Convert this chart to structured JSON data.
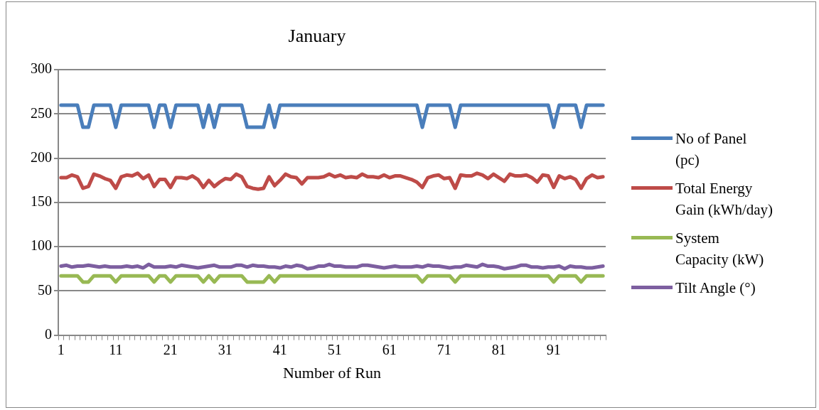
{
  "chart_data": {
    "type": "line",
    "title": "January",
    "xlabel": "Number of Run",
    "categories": [
      "1",
      null,
      null,
      null,
      null,
      null,
      null,
      null,
      null,
      null,
      "11",
      null,
      null,
      null,
      null,
      null,
      null,
      null,
      null,
      null,
      "21",
      null,
      null,
      null,
      null,
      null,
      null,
      null,
      null,
      null,
      "31",
      null,
      null,
      null,
      null,
      null,
      null,
      null,
      null,
      null,
      "41",
      null,
      null,
      null,
      null,
      null,
      null,
      null,
      null,
      null,
      "51",
      null,
      null,
      null,
      null,
      null,
      null,
      null,
      null,
      null,
      "61",
      null,
      null,
      null,
      null,
      null,
      null,
      null,
      null,
      null,
      "71",
      null,
      null,
      null,
      null,
      null,
      null,
      null,
      null,
      null,
      "81",
      null,
      null,
      null,
      null,
      null,
      null,
      null,
      null,
      null,
      "91",
      null,
      null,
      null,
      null,
      null,
      null,
      null,
      null,
      null
    ],
    "ylim": [
      0,
      300
    ],
    "yticks": [
      0,
      50,
      100,
      150,
      200,
      250,
      300
    ],
    "grid": "y",
    "legend": "right",
    "marker": "none",
    "line_style": "solid",
    "series": [
      {
        "name": "No of Panel (pc)",
        "color": "#4a7ebb",
        "values": [
          260,
          260,
          260,
          260,
          235,
          235,
          260,
          260,
          260,
          260,
          235,
          260,
          260,
          260,
          260,
          260,
          260,
          235,
          260,
          260,
          235,
          260,
          260,
          260,
          260,
          260,
          235,
          260,
          235,
          260,
          260,
          260,
          260,
          260,
          235,
          235,
          235,
          235,
          260,
          235,
          260,
          260,
          260,
          260,
          260,
          260,
          260,
          260,
          260,
          260,
          260,
          260,
          260,
          260,
          260,
          260,
          260,
          260,
          260,
          260,
          260,
          260,
          260,
          260,
          260,
          260,
          235,
          260,
          260,
          260,
          260,
          260,
          235,
          260,
          260,
          260,
          260,
          260,
          260,
          260,
          260,
          260,
          260,
          260,
          260,
          260,
          260,
          260,
          260,
          260,
          235,
          260,
          260,
          260,
          260,
          235,
          260,
          260,
          260,
          260
        ]
      },
      {
        "name": "Total Energy Gain (kWh/day)",
        "color": "#be4b48",
        "values": [
          178,
          178,
          181,
          179,
          166,
          168,
          182,
          180,
          177,
          175,
          166,
          179,
          181,
          180,
          183,
          177,
          181,
          168,
          176,
          176,
          167,
          178,
          178,
          177,
          180,
          176,
          167,
          175,
          168,
          173,
          177,
          176,
          182,
          179,
          168,
          166,
          165,
          166,
          179,
          169,
          175,
          182,
          179,
          178,
          171,
          178,
          178,
          178,
          179,
          182,
          179,
          181,
          178,
          179,
          178,
          182,
          179,
          179,
          178,
          181,
          178,
          180,
          180,
          178,
          176,
          173,
          167,
          178,
          180,
          181,
          177,
          178,
          166,
          181,
          180,
          180,
          183,
          181,
          177,
          182,
          178,
          174,
          182,
          180,
          180,
          181,
          178,
          173,
          181,
          180,
          167,
          180,
          177,
          179,
          176,
          166,
          177,
          181,
          178,
          179
        ]
      },
      {
        "name": "System Capacity (kW)",
        "color": "#98b954",
        "values": [
          67,
          67,
          67,
          67,
          60,
          60,
          67,
          67,
          67,
          67,
          60,
          67,
          67,
          67,
          67,
          67,
          67,
          60,
          67,
          67,
          60,
          67,
          67,
          67,
          67,
          67,
          60,
          67,
          60,
          67,
          67,
          67,
          67,
          67,
          60,
          60,
          60,
          60,
          67,
          60,
          67,
          67,
          67,
          67,
          67,
          67,
          67,
          67,
          67,
          67,
          67,
          67,
          67,
          67,
          67,
          67,
          67,
          67,
          67,
          67,
          67,
          67,
          67,
          67,
          67,
          67,
          60,
          67,
          67,
          67,
          67,
          67,
          60,
          67,
          67,
          67,
          67,
          67,
          67,
          67,
          67,
          67,
          67,
          67,
          67,
          67,
          67,
          67,
          67,
          67,
          60,
          67,
          67,
          67,
          67,
          60,
          67,
          67,
          67,
          67
        ]
      },
      {
        "name": "Tilt Angle (°)",
        "color": "#7d5fa0",
        "values": [
          78,
          79,
          77,
          78,
          78,
          79,
          78,
          77,
          78,
          77,
          77,
          77,
          78,
          77,
          78,
          76,
          80,
          77,
          77,
          77,
          78,
          77,
          79,
          78,
          77,
          76,
          77,
          78,
          79,
          77,
          77,
          77,
          79,
          79,
          77,
          79,
          78,
          78,
          77,
          77,
          76,
          78,
          77,
          79,
          78,
          75,
          76,
          78,
          78,
          80,
          78,
          78,
          77,
          77,
          77,
          79,
          79,
          78,
          77,
          76,
          77,
          78,
          77,
          77,
          77,
          78,
          77,
          79,
          78,
          78,
          77,
          76,
          77,
          77,
          79,
          78,
          77,
          80,
          78,
          78,
          77,
          75,
          76,
          77,
          79,
          79,
          77,
          77,
          76,
          77,
          77,
          78,
          75,
          78,
          77,
          77,
          76,
          76,
          77,
          78
        ]
      }
    ]
  }
}
